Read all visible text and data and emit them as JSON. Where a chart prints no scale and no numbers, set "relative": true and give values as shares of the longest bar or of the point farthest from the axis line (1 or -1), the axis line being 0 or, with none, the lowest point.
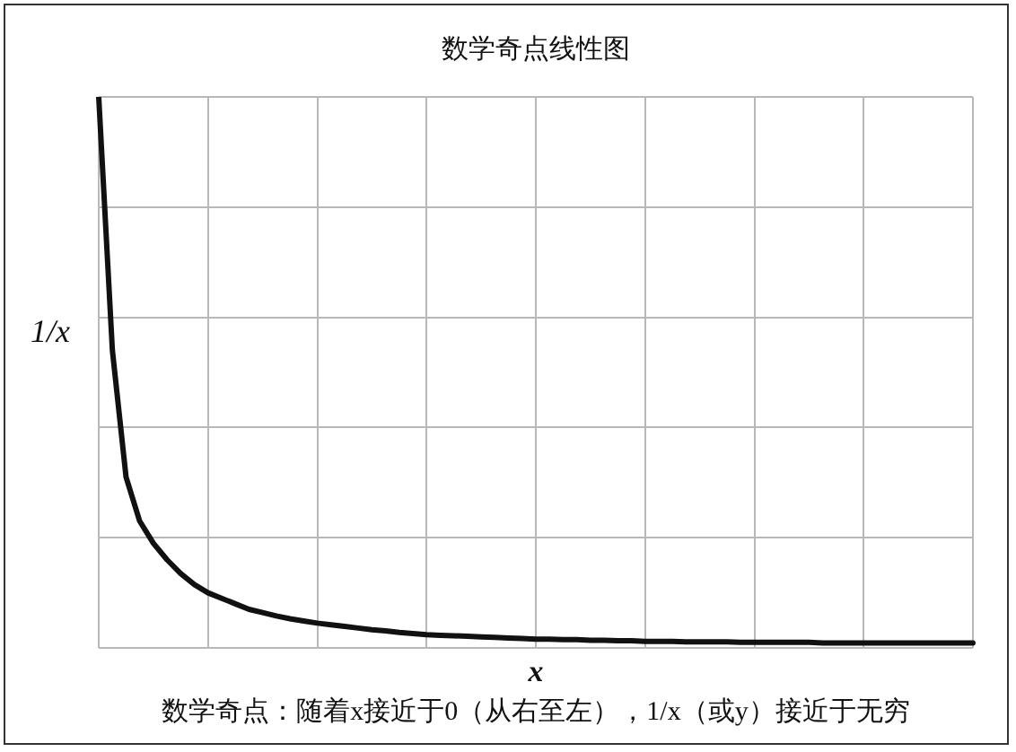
{
  "chart_data": {
    "type": "line",
    "title": "数学奇点线性图",
    "xlabel": "x",
    "ylabel": "1/x",
    "annotations": [
      "数学奇点：随着x接近于0（从右至左），1/x（或y）接近于无穷"
    ],
    "relative": true,
    "grid": true,
    "legend": false,
    "marker": "none",
    "line_style": "solid",
    "tick_labels": false,
    "categories": [
      null,
      null,
      null,
      null,
      null,
      null,
      null,
      null,
      null,
      null,
      null,
      null,
      null,
      null,
      null,
      null,
      null,
      null,
      null,
      null,
      null,
      null,
      null,
      null,
      null,
      null,
      null,
      null,
      null,
      null,
      null,
      null,
      null,
      null,
      null,
      null,
      null,
      null,
      null,
      null,
      null,
      null,
      null,
      null,
      null,
      null,
      null,
      null,
      null,
      null,
      null,
      null,
      null,
      null,
      null,
      null,
      null,
      null,
      null,
      null,
      null,
      null,
      null,
      null,
      null
    ],
    "series": [
      {
        "color": "#111111",
        "values": [
          1,
          0.54,
          0.31,
          0.23,
          0.19,
          0.16,
          0.135,
          0.115,
          0.1,
          0.09,
          0.08,
          0.07,
          0.064,
          0.058,
          0.053,
          0.049,
          0.045,
          0.042,
          0.039,
          0.036,
          0.033,
          0.031,
          0.028,
          0.026,
          0.024,
          0.023,
          0.022,
          0.021,
          0.02,
          0.019,
          0.018,
          0.017,
          0.016,
          0.016,
          0.015,
          0.015,
          0.014,
          0.014,
          0.013,
          0.013,
          0.012,
          0.012,
          0.012,
          0.011,
          0.011,
          0.011,
          0.011,
          0.01,
          0.01,
          0.01,
          0.01,
          0.01,
          0.01,
          0.009,
          0.009,
          0.009,
          0.009,
          0.009,
          0.009,
          0.009,
          0.009,
          0.009,
          0.009,
          0.009,
          0.009
        ]
      }
    ]
  }
}
